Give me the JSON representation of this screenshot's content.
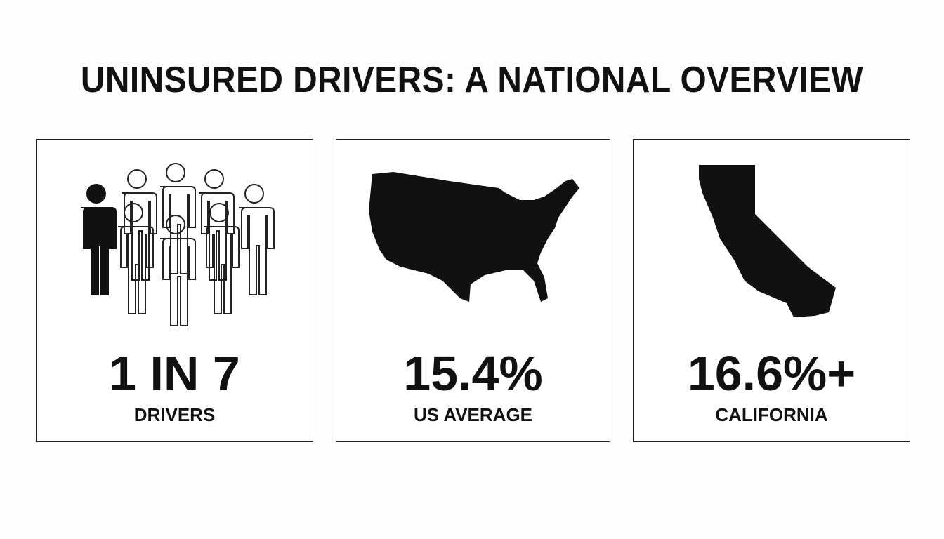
{
  "title": "UNINSURED DRIVERS: A NATIONAL OVERVIEW",
  "cards": [
    {
      "stat": "1 IN 7",
      "label": "DRIVERS"
    },
    {
      "stat": "15.4%",
      "label": "US AVERAGE"
    },
    {
      "stat": "16.6%+",
      "label": "CALIFORNIA"
    }
  ]
}
